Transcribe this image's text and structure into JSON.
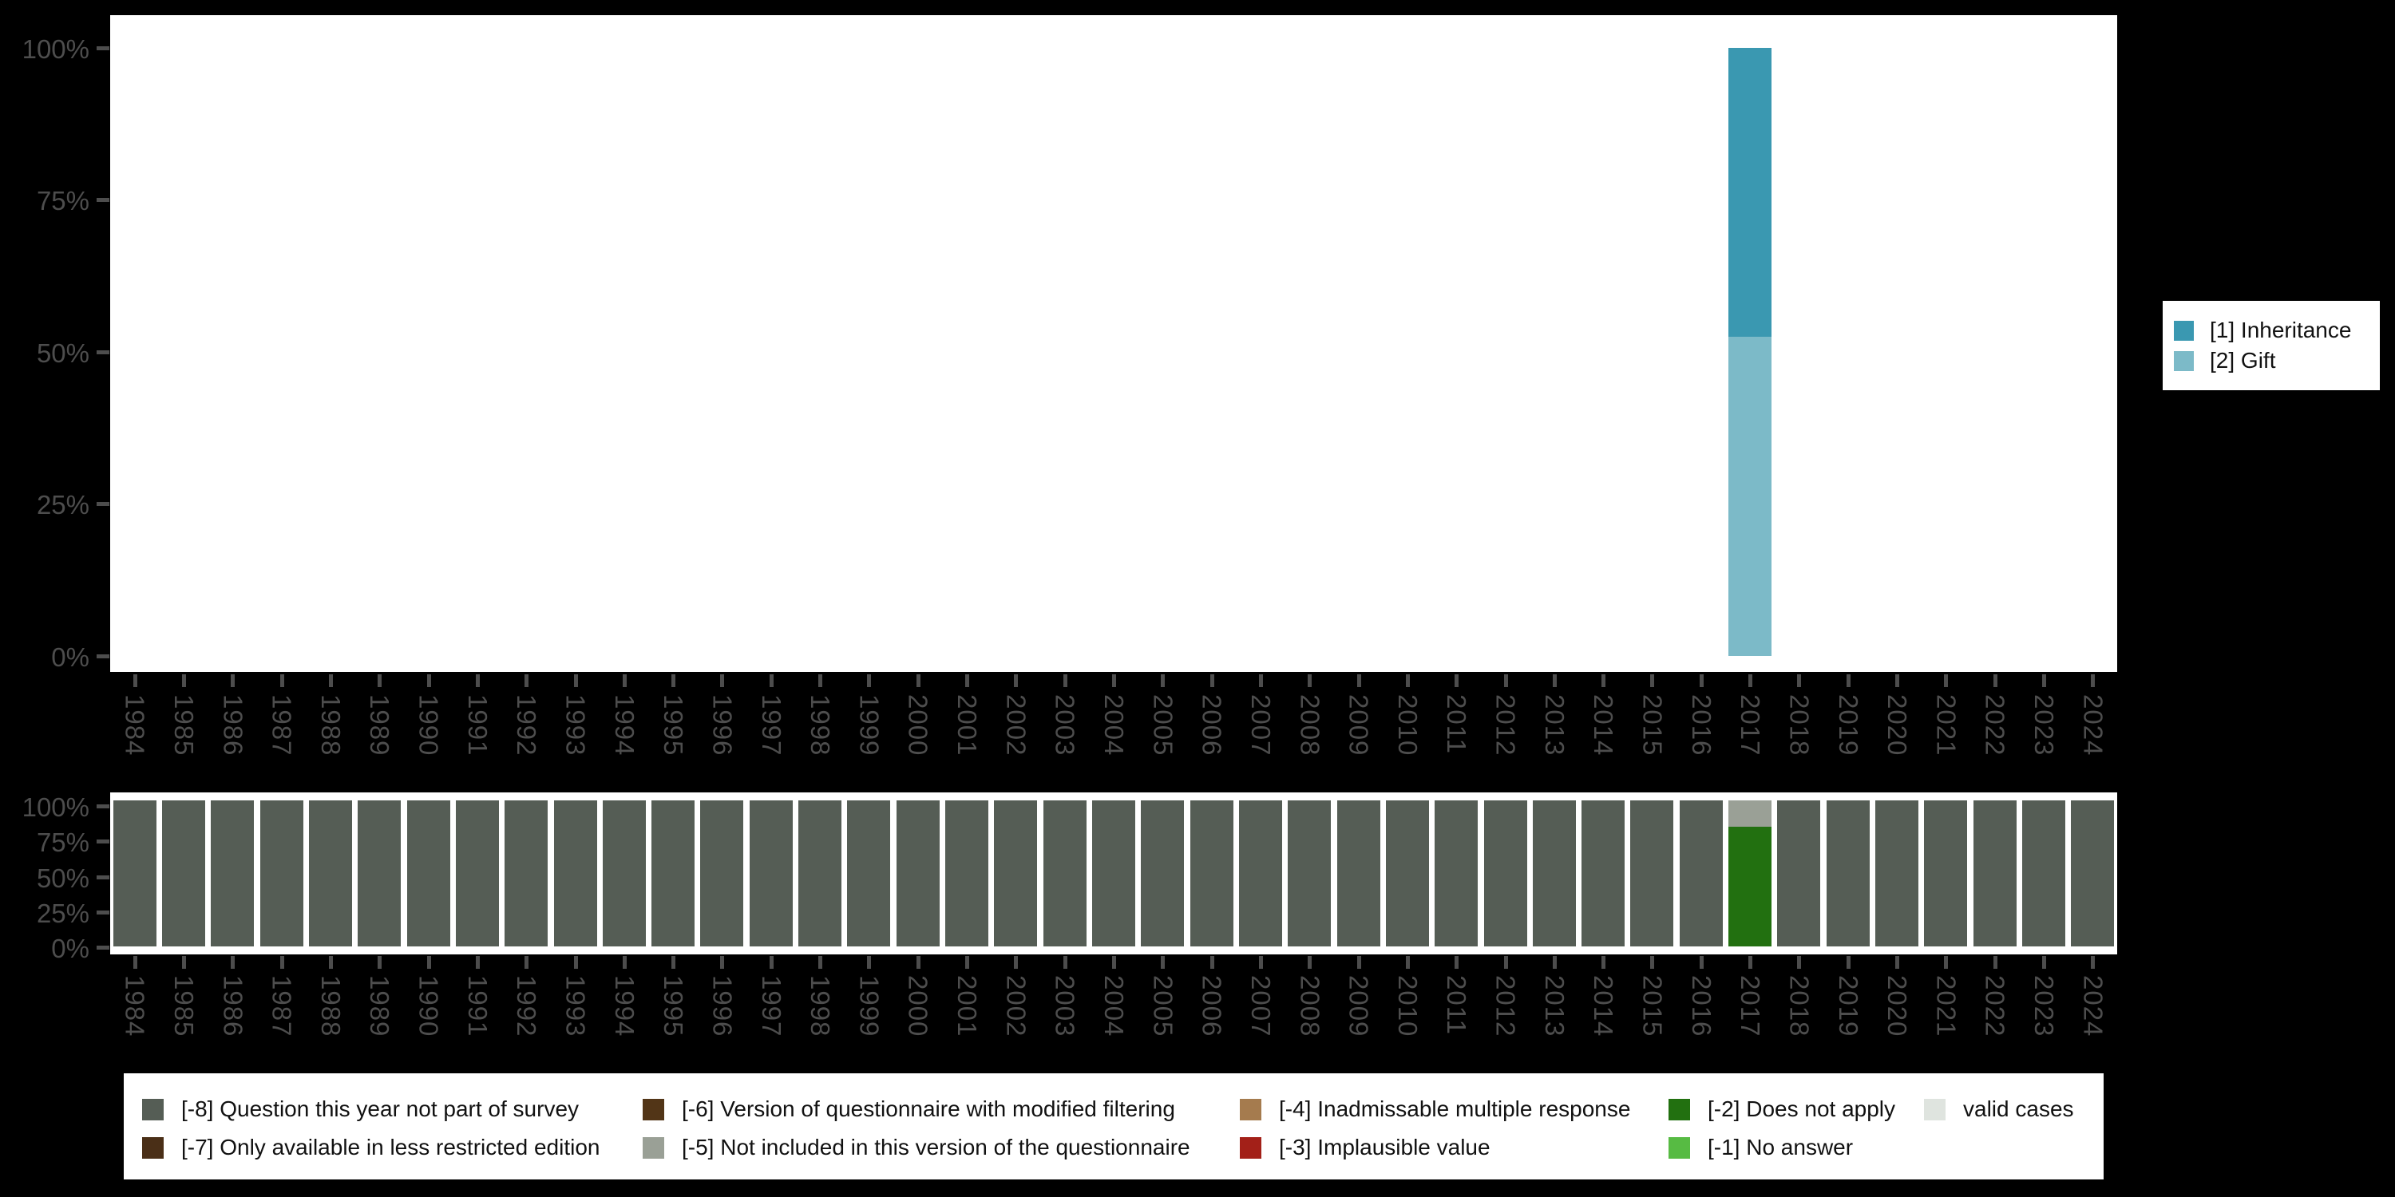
{
  "colors": {
    "background": "#000000",
    "plot_background": "#ffffff",
    "axis_text": "#4d4d4d",
    "inheritance": "#3A98B1",
    "gift": "#7CBAC8"
  },
  "years": [
    "1984",
    "1985",
    "1986",
    "1987",
    "1988",
    "1989",
    "1990",
    "1991",
    "1992",
    "1993",
    "1994",
    "1995",
    "1996",
    "1997",
    "1998",
    "1999",
    "2000",
    "2001",
    "2002",
    "2003",
    "2004",
    "2005",
    "2006",
    "2007",
    "2008",
    "2009",
    "2010",
    "2011",
    "2012",
    "2013",
    "2014",
    "2015",
    "2016",
    "2017",
    "2018",
    "2019",
    "2020",
    "2021",
    "2022",
    "2023",
    "2024"
  ],
  "answer_legend": {
    "items": [
      {
        "label": "[1] Inheritance",
        "color": "#3A98B1"
      },
      {
        "label": "[2] Gift",
        "color": "#7CBAC8"
      }
    ]
  },
  "missing_legend": {
    "items": [
      {
        "code": "-8",
        "label": "[-8] Question this year not part of survey",
        "color": "#555D55"
      },
      {
        "code": "-7",
        "label": "[-7] Only available in less restricted edition",
        "color": "#4A2F17"
      },
      {
        "code": "-6",
        "label": "[-6] Version of questionnaire with modified filtering",
        "color": "#523517"
      },
      {
        "code": "-5",
        "label": "[-5] Not included in this version of the questionnaire",
        "color": "#9AA096"
      },
      {
        "code": "-4",
        "label": "[-4] Inadmissable multiple response",
        "color": "#A57B4E"
      },
      {
        "code": "-3",
        "label": "[-3] Implausible value",
        "color": "#A32018"
      },
      {
        "code": "-2",
        "label": "[-2] Does not apply",
        "color": "#227010"
      },
      {
        "code": "-1",
        "label": "[-1] No answer",
        "color": "#57BB43"
      },
      {
        "code": "valid",
        "label": "valid cases",
        "color": "#DFE4DF"
      }
    ]
  },
  "chart_data": [
    {
      "type": "bar",
      "title": "",
      "stacked": true,
      "ylabels": [
        "100%",
        "75%",
        "50%",
        "25%",
        "0%"
      ],
      "ylim": [
        0,
        100
      ],
      "legend_position": "right",
      "grid": false,
      "categories_note": "x axis = survey years 1984-2024, only 2017 has valid answers",
      "series": [
        {
          "name": "[1] Inheritance",
          "color_key": "inheritance",
          "stack_order": "top",
          "values_by_year": {
            "2017": 47.5
          }
        },
        {
          "name": "[2] Gift",
          "color_key": "gift",
          "stack_order": "bottom",
          "values_by_year": {
            "2017": 52.5
          }
        }
      ]
    },
    {
      "type": "bar",
      "title": "",
      "stacked": true,
      "ylabels": [
        "100%",
        "75%",
        "50%",
        "25%",
        "0%"
      ],
      "ylim": [
        0,
        100
      ],
      "grid": false,
      "default_stack_top_to_bottom": [
        {
          "code": "-8",
          "pct": 100
        }
      ],
      "stacks_by_year_top_to_bottom": {
        "2017": [
          {
            "code": "-5",
            "pct": 17.8
          },
          {
            "code": "-2",
            "pct": 82.2
          }
        ]
      }
    }
  ]
}
